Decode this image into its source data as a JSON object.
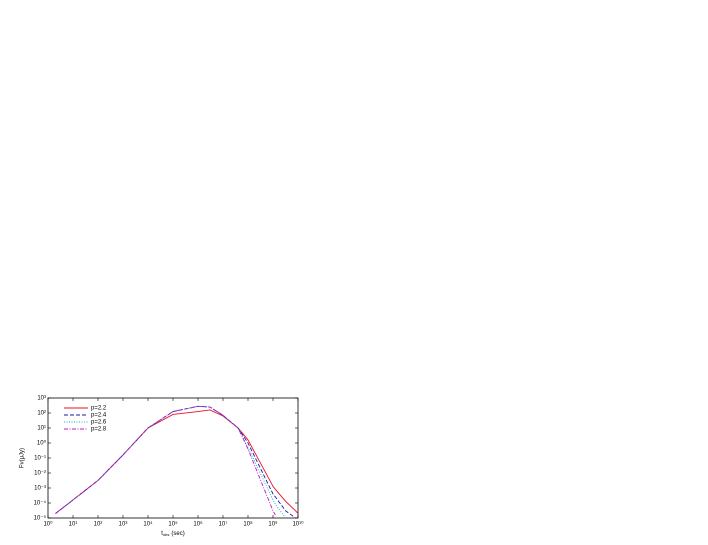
{
  "chart_data": {
    "type": "line",
    "y_label": "Fν(μJy)",
    "x_label_main": "t",
    "x_label_sub": "obs",
    "x_label_unit": "(sec)",
    "log_x": true,
    "log_y": true,
    "legend": "upper left",
    "xlim": [
      1,
      10000000000
    ],
    "ylim": [
      1e-05,
      1000
    ],
    "xticks": [
      {
        "value": 1,
        "label": "10⁰"
      },
      {
        "value": 10,
        "label": "10¹"
      },
      {
        "value": 100,
        "label": "10²"
      },
      {
        "value": 1000,
        "label": "10³"
      },
      {
        "value": 10000,
        "label": "10⁴"
      },
      {
        "value": 100000,
        "label": "10⁵"
      },
      {
        "value": 1000000,
        "label": "10⁶"
      },
      {
        "value": 10000000,
        "label": "10⁷"
      },
      {
        "value": 100000000,
        "label": "10⁸"
      },
      {
        "value": 1000000000,
        "label": "10⁹"
      },
      {
        "value": 10000000000,
        "label": "10¹⁰"
      }
    ],
    "yticks": [
      {
        "value": 1e-05,
        "label": "10⁻⁵"
      },
      {
        "value": 0.0001,
        "label": "10⁻⁴"
      },
      {
        "value": 0.001,
        "label": "10⁻³"
      },
      {
        "value": 0.01,
        "label": "10⁻²"
      },
      {
        "value": 0.1,
        "label": "10⁻¹"
      },
      {
        "value": 1,
        "label": "10⁰"
      },
      {
        "value": 10,
        "label": "10¹"
      },
      {
        "value": 100,
        "label": "10²"
      },
      {
        "value": 1000,
        "label": "10³"
      }
    ],
    "x": [
      2,
      10,
      100,
      1000,
      10000,
      100000,
      1000000,
      3000000,
      10000000,
      40000000,
      100000000,
      1000000000,
      1250000000,
      3200000000,
      8000000000,
      10000000000
    ],
    "series": [
      {
        "name": "p=2.2",
        "color": "#e8102a",
        "dash": "solid",
        "values": [
          2e-05,
          0.00016,
          0.0032,
          0.16,
          10,
          80,
          125,
          160,
          63,
          10,
          1.6,
          0.0013,
          0.0008,
          0.00013,
          3e-05,
          2e-05
        ]
      },
      {
        "name": "p=2.4",
        "color": "#1a1aa8",
        "dash": "dashed",
        "values": [
          2e-05,
          0.00016,
          0.0032,
          0.16,
          10,
          125,
          280,
          250,
          70,
          10,
          1,
          0.0004,
          0.00025,
          3e-05,
          1e-05,
          null
        ]
      },
      {
        "name": "p=2.6",
        "color": "#16b0c8",
        "dash": "dotted",
        "values": [
          2e-05,
          0.00016,
          0.0032,
          0.16,
          10,
          125,
          280,
          250,
          70,
          10,
          0.5,
          0.00016,
          8e-05,
          1e-05,
          null,
          null
        ]
      },
      {
        "name": "p=2.8",
        "color": "#c014c0",
        "dash": "dashdot",
        "values": [
          2e-05,
          0.00016,
          0.0032,
          0.16,
          10,
          125,
          280,
          250,
          70,
          10,
          0.4,
          3e-05,
          1.6e-05,
          null,
          null,
          null
        ]
      }
    ]
  }
}
